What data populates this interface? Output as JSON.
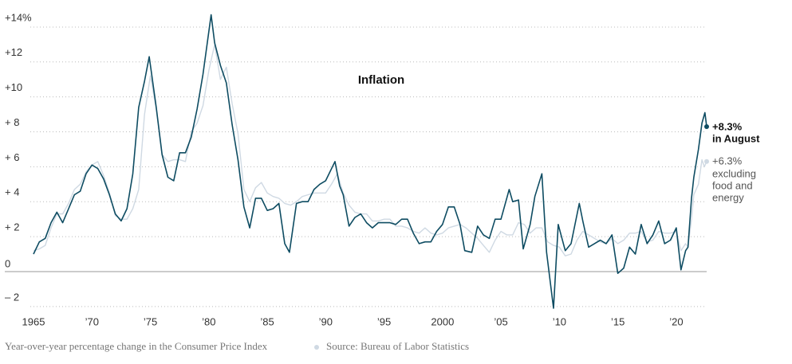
{
  "chart_data": {
    "type": "line",
    "title": "Inflation",
    "caption": "Year-over-year percentage change in the Consumer Price Index",
    "source": "Source: Bureau of Labor Statistics",
    "annotations": [
      "+8.3%",
      "in August",
      "+6.3%",
      "excluding",
      "food and",
      "energy"
    ],
    "grid": true,
    "xlim": [
      1965,
      2022.6
    ],
    "ylim": [
      -2.4,
      14.8
    ],
    "xticks": [
      1965,
      {
        "value": 1970,
        "label": "’70"
      },
      {
        "value": 1975,
        "label": "’75"
      },
      {
        "value": 1980,
        "label": "’80"
      },
      {
        "value": 1985,
        "label": "’85"
      },
      {
        "value": 1990,
        "label": "’90"
      },
      {
        "value": 1995,
        "label": "’95"
      },
      2000,
      {
        "value": 2005,
        "label": "’05"
      },
      {
        "value": 2010,
        "label": "’10"
      },
      {
        "value": 2015,
        "label": "’15"
      },
      {
        "value": 2020,
        "label": "’20"
      }
    ],
    "yticks": [
      {
        "value": -2,
        "label": "– 2"
      },
      0,
      {
        "value": 2,
        "label": "+ 2"
      },
      {
        "value": 4,
        "label": "+ 4"
      },
      {
        "value": 6,
        "label": "+ 6"
      },
      {
        "value": 8,
        "label": "+ 8"
      },
      {
        "value": 10,
        "label": "+10"
      },
      {
        "value": 12,
        "label": "+12"
      },
      {
        "value": 14,
        "label": "+14%"
      }
    ],
    "series": [
      {
        "color": "#cfd9e3",
        "x": [
          1965,
          1965.5,
          1966,
          1966.5,
          1967,
          1967.5,
          1968,
          1968.5,
          1969,
          1969.5,
          1970,
          1970.5,
          1971,
          1971.5,
          1972,
          1972.5,
          1973,
          1973.5,
          1974,
          1974.5,
          1975,
          1975.5,
          1976,
          1976.5,
          1977,
          1977.5,
          1978,
          1978.5,
          1979,
          1979.5,
          1980,
          1980.5,
          1981,
          1981.5,
          1982,
          1982.5,
          1983,
          1983.5,
          1984,
          1984.5,
          1985,
          1985.5,
          1986,
          1986.5,
          1987,
          1987.5,
          1988,
          1988.5,
          1989,
          1989.5,
          1990,
          1990.5,
          1991,
          1991.5,
          1992,
          1992.5,
          1993,
          1993.5,
          1994,
          1994.5,
          1995,
          1995.5,
          1996,
          1996.5,
          1997,
          1997.5,
          1998,
          1998.5,
          1999,
          1999.5,
          2000,
          2000.5,
          2001,
          2001.5,
          2002,
          2002.5,
          2003,
          2003.5,
          2004,
          2004.5,
          2005,
          2005.5,
          2006,
          2006.5,
          2007,
          2007.5,
          2008,
          2008.5,
          2009,
          2009.5,
          2010,
          2010.5,
          2011,
          2011.5,
          2012,
          2012.5,
          2013,
          2013.5,
          2014,
          2014.5,
          2015,
          2015.5,
          2016,
          2016.5,
          2017,
          2017.5,
          2018,
          2018.5,
          2019,
          2019.5,
          2020,
          2020.4,
          2020.8,
          2021,
          2021.3,
          2021.5,
          2021.9,
          2022.2,
          2022.4,
          2022.6
        ],
        "values": [
          1.2,
          1.3,
          1.5,
          2.5,
          3.3,
          3.3,
          3.9,
          4.7,
          5.0,
          5.7,
          6.1,
          6.3,
          5.5,
          4.5,
          3.2,
          3.0,
          3.0,
          3.6,
          4.7,
          9.0,
          11.2,
          9.3,
          6.7,
          6.3,
          6.4,
          6.4,
          6.3,
          8.0,
          8.5,
          9.5,
          11.5,
          13.0,
          11.0,
          11.7,
          9.6,
          7.9,
          4.7,
          4.0,
          4.8,
          5.1,
          4.5,
          4.3,
          4.2,
          3.9,
          3.8,
          4.0,
          4.3,
          4.4,
          4.5,
          4.5,
          4.5,
          5.0,
          5.6,
          4.5,
          3.8,
          3.4,
          3.3,
          3.3,
          2.9,
          2.9,
          3.0,
          3.0,
          2.6,
          2.6,
          2.5,
          2.3,
          2.2,
          2.5,
          2.2,
          2.1,
          2.2,
          2.5,
          2.6,
          2.7,
          2.5,
          2.2,
          1.9,
          1.5,
          1.1,
          1.8,
          2.3,
          2.1,
          2.1,
          2.8,
          2.7,
          2.2,
          2.5,
          2.5,
          1.7,
          1.5,
          1.4,
          0.9,
          1.0,
          1.8,
          2.3,
          2.1,
          1.9,
          1.7,
          1.6,
          1.9,
          1.6,
          1.8,
          2.2,
          2.2,
          2.3,
          1.7,
          1.8,
          2.3,
          2.2,
          2.2,
          2.3,
          1.2,
          1.6,
          1.4,
          3.0,
          4.4,
          5.0,
          6.4,
          6.0,
          6.3
        ]
      },
      {
        "color": "#0e4c62",
        "x": [
          1965,
          1965.5,
          1966,
          1966.5,
          1967,
          1967.5,
          1968,
          1968.5,
          1969,
          1969.5,
          1970,
          1970.5,
          1971,
          1971.5,
          1972,
          1972.5,
          1973,
          1973.5,
          1974,
          1974.5,
          1974.9,
          1975.5,
          1976,
          1976.5,
          1977,
          1977.5,
          1978,
          1978.5,
          1979,
          1979.5,
          1980.2,
          1980.5,
          1981,
          1981.5,
          1982,
          1982.5,
          1983,
          1983.5,
          1984,
          1984.5,
          1985,
          1985.5,
          1986,
          1986.5,
          1986.9,
          1987.5,
          1988,
          1988.5,
          1989,
          1989.5,
          1990,
          1990.8,
          1991.2,
          1991.5,
          1992,
          1992.5,
          1993,
          1993.5,
          1994,
          1994.5,
          1995,
          1995.5,
          1996,
          1996.5,
          1997,
          1997.5,
          1998,
          1998.5,
          1999,
          1999.5,
          2000,
          2000.5,
          2001,
          2001.5,
          2001.9,
          2002.5,
          2003,
          2003.5,
          2004,
          2004.5,
          2005,
          2005.7,
          2006,
          2006.5,
          2006.9,
          2007.5,
          2007.9,
          2008.5,
          2008.9,
          2009.5,
          2009.9,
          2010.5,
          2011,
          2011.7,
          2012,
          2012.5,
          2013,
          2013.5,
          2014,
          2014.5,
          2015,
          2015.5,
          2016,
          2016.5,
          2017,
          2017.5,
          2018,
          2018.5,
          2019,
          2019.5,
          2020,
          2020.4,
          2020.8,
          2021,
          2021.3,
          2021.5,
          2021.9,
          2022.2,
          2022.45,
          2022.6
        ],
        "values": [
          1.0,
          1.7,
          1.9,
          2.8,
          3.4,
          2.8,
          3.6,
          4.4,
          4.6,
          5.6,
          6.1,
          5.9,
          5.3,
          4.4,
          3.3,
          2.9,
          3.6,
          5.6,
          9.4,
          10.9,
          12.3,
          9.4,
          6.7,
          5.4,
          5.2,
          6.8,
          6.8,
          7.7,
          9.3,
          11.3,
          14.7,
          13.1,
          11.8,
          10.8,
          8.4,
          6.4,
          3.7,
          2.5,
          4.2,
          4.2,
          3.5,
          3.6,
          3.9,
          1.6,
          1.1,
          3.9,
          4.0,
          4.0,
          4.7,
          5.0,
          5.2,
          6.3,
          4.9,
          4.4,
          2.6,
          3.1,
          3.3,
          2.8,
          2.5,
          2.8,
          2.8,
          2.8,
          2.7,
          3.0,
          3.0,
          2.2,
          1.6,
          1.7,
          1.7,
          2.3,
          2.7,
          3.7,
          3.7,
          2.7,
          1.2,
          1.1,
          2.6,
          2.1,
          1.9,
          3.0,
          3.0,
          4.7,
          4.0,
          4.1,
          1.3,
          2.7,
          4.3,
          5.6,
          1.1,
          -2.1,
          2.7,
          1.2,
          1.6,
          3.9,
          2.9,
          1.4,
          1.6,
          1.8,
          1.6,
          2.1,
          -0.1,
          0.2,
          1.4,
          1.0,
          2.7,
          1.6,
          2.1,
          2.9,
          1.6,
          1.8,
          2.5,
          0.1,
          1.2,
          1.4,
          4.2,
          5.4,
          7.0,
          8.5,
          9.1,
          8.3
        ]
      }
    ]
  }
}
